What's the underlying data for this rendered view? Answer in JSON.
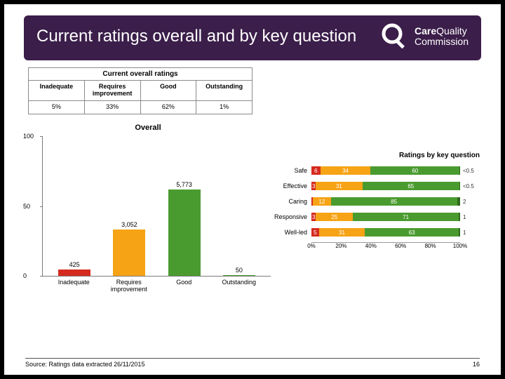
{
  "header": {
    "title": "Current ratings overall and by key question",
    "logo_line1a": "Care",
    "logo_line1b": "Quality",
    "logo_line2": "Commission"
  },
  "table": {
    "title": "Current overall ratings",
    "columns": [
      "Inadequate",
      "Requires improvement",
      "Good",
      "Outstanding"
    ],
    "values": [
      "5%",
      "33%",
      "62%",
      "1%"
    ]
  },
  "colors": {
    "inadequate": "#d52b1e",
    "requires": "#f6a316",
    "good": "#4a9b2f",
    "outstanding": "#4a9b2f",
    "axis": "#7a7a7a",
    "background": "#ffffff"
  },
  "overall_chart": {
    "type": "bar",
    "title": "Overall",
    "categories": [
      "Inadequate",
      "Requires improvement",
      "Good",
      "Outstanding"
    ],
    "values": [
      425,
      3052,
      5773,
      50
    ],
    "bar_colors": [
      "#d52b1e",
      "#f6a316",
      "#4a9b2f",
      "#4a9b2f"
    ],
    "y_max_pct": 100,
    "y_ticks": [
      0,
      50,
      100
    ],
    "bar_heights_pct": [
      4.5,
      33,
      62,
      0.6
    ],
    "label_fontsize": 9,
    "title_fontsize": 11
  },
  "kq_chart": {
    "type": "stacked-bar-horizontal",
    "title": "Ratings by key question",
    "segment_colors": [
      "#d52b1e",
      "#f6a316",
      "#4a9b2f",
      "#2e6b1d"
    ],
    "rows": [
      {
        "label": "Safe",
        "segs": [
          6,
          34,
          60,
          0.4
        ],
        "end": "<0.5"
      },
      {
        "label": "Effective",
        "segs": [
          3,
          31,
          65,
          0.4
        ],
        "end": "<0.5"
      },
      {
        "label": "Caring",
        "segs": [
          1,
          12,
          85,
          2
        ],
        "end": "2"
      },
      {
        "label": "Responsive",
        "segs": [
          3,
          25,
          71,
          1
        ],
        "end": "1"
      },
      {
        "label": "Well-led",
        "segs": [
          5,
          31,
          63,
          1
        ],
        "end": "1"
      }
    ],
    "x_ticks": [
      0,
      20,
      40,
      60,
      80,
      100
    ],
    "label_fontsize": 9
  },
  "footer": {
    "source": "Source: Ratings data extracted 26/11/2015",
    "page": "16"
  }
}
